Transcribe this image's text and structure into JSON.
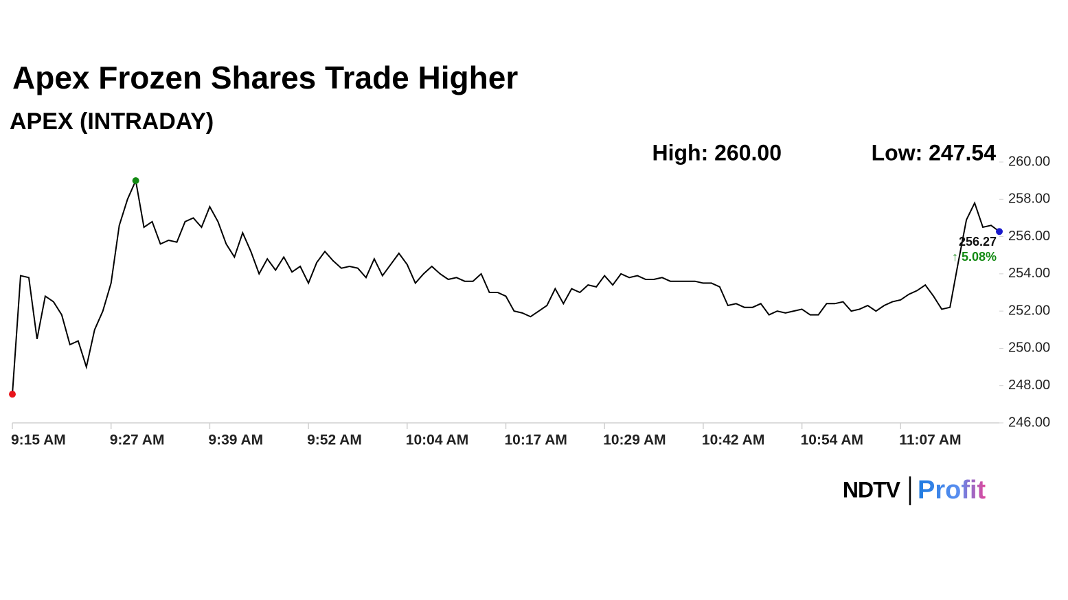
{
  "chart_data": {
    "type": "line",
    "title": "Apex Frozen Shares Trade Higher",
    "subtitle": "APEX (INTRADAY)",
    "high_label": "High: 260.00",
    "low_label": "Low: 247.54",
    "last_label": "256.27",
    "change_label": "↑ 5.08%",
    "brand": "NDTV",
    "product": "Profit",
    "color": "#000000",
    "low_color": "#e8141b",
    "high_color": "#138a13",
    "last_color": "#1a1acc",
    "change_color": "#138a13",
    "ylim": [
      246,
      260
    ],
    "yticks": [
      {
        "value": 246,
        "label": "246.00"
      },
      {
        "value": 248,
        "label": "248.00"
      },
      {
        "value": 250,
        "label": "250.00"
      },
      {
        "value": 252,
        "label": "252.00"
      },
      {
        "value": 254,
        "label": "254.00"
      },
      {
        "value": 256,
        "label": "256.00"
      },
      {
        "value": 258,
        "label": "258.00"
      },
      {
        "value": 260,
        "label": "260.00"
      }
    ],
    "categories": [
      "9:15 AM",
      null,
      null,
      null,
      null,
      null,
      null,
      null,
      null,
      null,
      null,
      null,
      "9:27 AM",
      null,
      null,
      null,
      null,
      null,
      null,
      null,
      null,
      null,
      null,
      null,
      "9:39 AM",
      null,
      null,
      null,
      null,
      null,
      null,
      null,
      null,
      null,
      null,
      null,
      "9:52 AM",
      null,
      null,
      null,
      null,
      null,
      null,
      null,
      null,
      null,
      null,
      null,
      "10:04 AM",
      null,
      null,
      null,
      null,
      null,
      null,
      null,
      null,
      null,
      null,
      null,
      "10:17 AM",
      null,
      null,
      null,
      null,
      null,
      null,
      null,
      null,
      null,
      null,
      null,
      "10:29 AM",
      null,
      null,
      null,
      null,
      null,
      null,
      null,
      null,
      null,
      null,
      null,
      "10:42 AM",
      null,
      null,
      null,
      null,
      null,
      null,
      null,
      null,
      null,
      null,
      null,
      "10:54 AM",
      null,
      null,
      null,
      null,
      null,
      null,
      null,
      null,
      null,
      null,
      null,
      "11:07 AM",
      null,
      null,
      null,
      null,
      null,
      null,
      null,
      null,
      null,
      null,
      null,
      null
    ],
    "values": [
      247.54,
      253.9,
      253.8,
      250.5,
      252.8,
      252.5,
      251.8,
      250.2,
      250.4,
      249.0,
      251.0,
      252.0,
      253.5,
      256.6,
      258.0,
      259.0,
      256.5,
      256.8,
      255.6,
      255.8,
      255.7,
      256.8,
      257.0,
      256.5,
      257.6,
      256.8,
      255.6,
      254.9,
      256.2,
      255.2,
      254.0,
      254.8,
      254.2,
      254.9,
      254.1,
      254.4,
      253.5,
      254.6,
      255.2,
      254.7,
      254.3,
      254.4,
      254.3,
      253.8,
      254.8,
      253.9,
      254.5,
      255.1,
      254.5,
      253.5,
      254.0,
      254.4,
      254.0,
      253.7,
      253.8,
      253.6,
      253.6,
      254.0,
      253.0,
      253.0,
      252.8,
      252.0,
      251.9,
      251.7,
      252.0,
      252.3,
      253.2,
      252.4,
      253.2,
      253.0,
      253.4,
      253.3,
      253.9,
      253.4,
      254.0,
      253.8,
      253.9,
      253.7,
      253.7,
      253.8,
      253.6,
      253.6,
      253.6,
      253.6,
      253.5,
      253.5,
      253.3,
      252.3,
      252.4,
      252.2,
      252.2,
      252.4,
      251.8,
      252.0,
      251.9,
      252.0,
      252.1,
      251.8,
      251.8,
      252.4,
      252.4,
      252.5,
      252.0,
      252.1,
      252.3,
      252.0,
      252.3,
      252.5,
      252.6,
      252.9,
      253.1,
      253.4,
      252.8,
      252.1,
      252.2,
      254.6,
      256.9,
      257.8,
      256.5,
      256.6,
      256.27
    ]
  }
}
